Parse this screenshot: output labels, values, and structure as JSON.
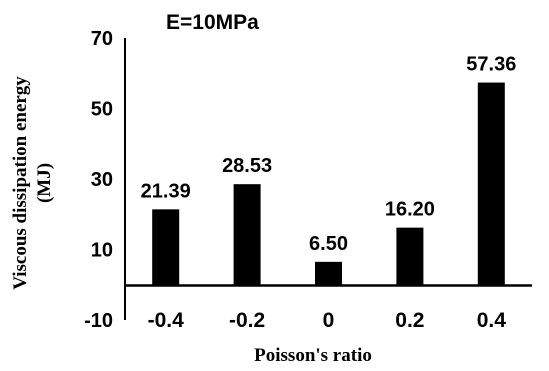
{
  "chart_data": {
    "type": "bar",
    "annotation": "E=10MPa",
    "xlabel": "Poisson's ratio",
    "ylabel_line1": "Viscous dissipation energy",
    "ylabel_line2": "(MJ)",
    "categories": [
      "-0.4",
      "-0.2",
      "0",
      "0.2",
      "0.4"
    ],
    "values": [
      21.39,
      28.53,
      6.5,
      16.2,
      57.36
    ],
    "value_labels": [
      "21.39",
      "28.53",
      "6.50",
      "16.20",
      "57.36"
    ],
    "ylim": [
      -10,
      70
    ],
    "yticks": [
      -10,
      10,
      30,
      50,
      70
    ],
    "ytick_labels": [
      "-10",
      "10",
      "30",
      "50",
      "70"
    ],
    "grid": false,
    "legend": false,
    "bar_color": "#000000"
  }
}
